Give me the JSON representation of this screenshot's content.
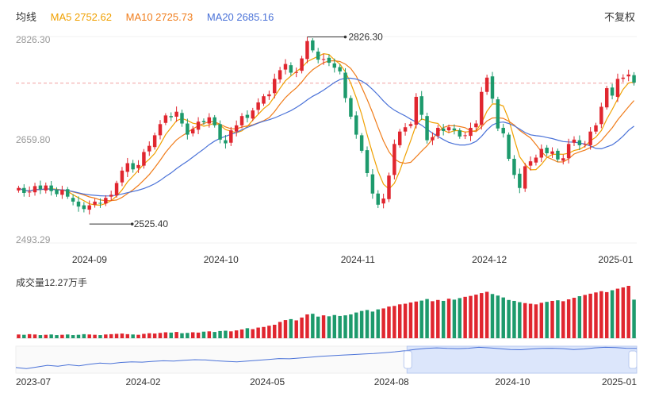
{
  "legend": {
    "main": "均线",
    "ma5": "MA5 2752.62",
    "ma10": "MA10 2725.73",
    "ma20": "MA20 2685.16"
  },
  "toggle_label": "不复权",
  "volume_label": "成交量12.27万手",
  "colors": {
    "up": "#e0262f",
    "down": "#1d9a6c",
    "ma5": "#f0a000",
    "ma10": "#f07c1a",
    "ma20": "#4a72d8",
    "refline": "#f0a0a0"
  },
  "chart_data": {
    "type": "candlestick",
    "y_ticks": [
      "2826.30",
      "2659.80",
      "2493.29"
    ],
    "ylim": [
      2493.29,
      2826.3
    ],
    "x_ticks": [
      "2024-09",
      "2024-10",
      "2024-11",
      "2024-12",
      "2025-01"
    ],
    "max_annotation": "2826.30",
    "min_annotation": "2525.40",
    "reference_price": 2751,
    "ma": {
      "ma5": 2752.62,
      "ma10": 2725.73,
      "ma20": 2685.16
    },
    "volume_current": "12.27万手",
    "closes": [
      2582,
      2574,
      2576,
      2585,
      2580,
      2586,
      2577,
      2572,
      2579,
      2568,
      2560,
      2552,
      2548,
      2554,
      2560,
      2557,
      2566,
      2571,
      2590,
      2610,
      2622,
      2612,
      2619,
      2640,
      2650,
      2667,
      2685,
      2699,
      2696,
      2705,
      2686,
      2668,
      2677,
      2689,
      2688,
      2696,
      2683,
      2660,
      2654,
      2675,
      2683,
      2698,
      2695,
      2707,
      2720,
      2730,
      2733,
      2758,
      2772,
      2782,
      2768,
      2769,
      2791,
      2819,
      2804,
      2789,
      2790,
      2784,
      2776,
      2770,
      2727,
      2697,
      2668,
      2642,
      2606,
      2573,
      2555,
      2565,
      2602,
      2653,
      2673,
      2680,
      2685,
      2729,
      2700,
      2659,
      2664,
      2679,
      2674,
      2680,
      2675,
      2665,
      2667,
      2679,
      2686,
      2737,
      2760,
      2726,
      2678,
      2670,
      2629,
      2603,
      2582,
      2617,
      2625,
      2631,
      2645,
      2638,
      2641,
      2628,
      2630,
      2653,
      2660,
      2651,
      2653,
      2673,
      2683,
      2713,
      2743,
      2731,
      2758,
      2760,
      2765,
      2752
    ],
    "volume": [
      1.2,
      1.1,
      1.3,
      1.2,
      1.0,
      1.1,
      1.2,
      1.0,
      1.1,
      1.2,
      1.0,
      1.1,
      1.3,
      1.2,
      1.1,
      1.0,
      1.2,
      1.3,
      1.4,
      1.5,
      1.3,
      1.2,
      1.1,
      1.4,
      1.6,
      1.5,
      1.7,
      1.9,
      1.8,
      2.0,
      1.6,
      1.7,
      1.9,
      1.8,
      2.1,
      2.2,
      2.0,
      2.3,
      2.4,
      2.2,
      2.5,
      2.8,
      3.2,
      2.9,
      3.4,
      3.6,
      4.0,
      4.3,
      5.2,
      5.8,
      6.1,
      5.7,
      6.6,
      7.6,
      7.8,
      6.9,
      7.3,
      7.0,
      7.4,
      7.1,
      7.3,
      7.6,
      8.2,
      8.7,
      9.0,
      8.5,
      9.2,
      9.5,
      10.1,
      10.3,
      10.8,
      11.0,
      11.4,
      11.7,
      12.0,
      12.5,
      11.8,
      12.2,
      11.9,
      12.6,
      12.3,
      12.8,
      13.2,
      13.5,
      13.9,
      14.4,
      14.8,
      14.1,
      13.6,
      13.0,
      12.2,
      11.9,
      11.5,
      11.2,
      11.0,
      10.8,
      11.3,
      11.6,
      11.9,
      12.1,
      11.8,
      12.4,
      12.9,
      13.4,
      13.8,
      14.2,
      14.6,
      15.0,
      14.7,
      15.3,
      15.8,
      16.2,
      16.7,
      12.3
    ],
    "navigator": {
      "x_ticks": [
        "2023-07",
        "2024-02",
        "2024-05",
        "2024-08",
        "2024-10",
        "2025-01"
      ],
      "values": [
        2600,
        2590,
        2605,
        2620,
        2612,
        2625,
        2615,
        2630,
        2640,
        2635,
        2645,
        2650,
        2648,
        2655,
        2660,
        2658,
        2665,
        2670,
        2668,
        2660,
        2655,
        2650,
        2658,
        2665,
        2672,
        2680,
        2678,
        2685,
        2692,
        2700,
        2705,
        2710,
        2715,
        2720,
        2725,
        2732,
        2740,
        2750,
        2762,
        2770,
        2775,
        2770,
        2768,
        2772,
        2780,
        2775,
        2768,
        2760,
        2758,
        2765,
        2770,
        2772,
        2768,
        2760,
        2765,
        2775,
        2780,
        2778,
        2772,
        2770
      ]
    }
  }
}
